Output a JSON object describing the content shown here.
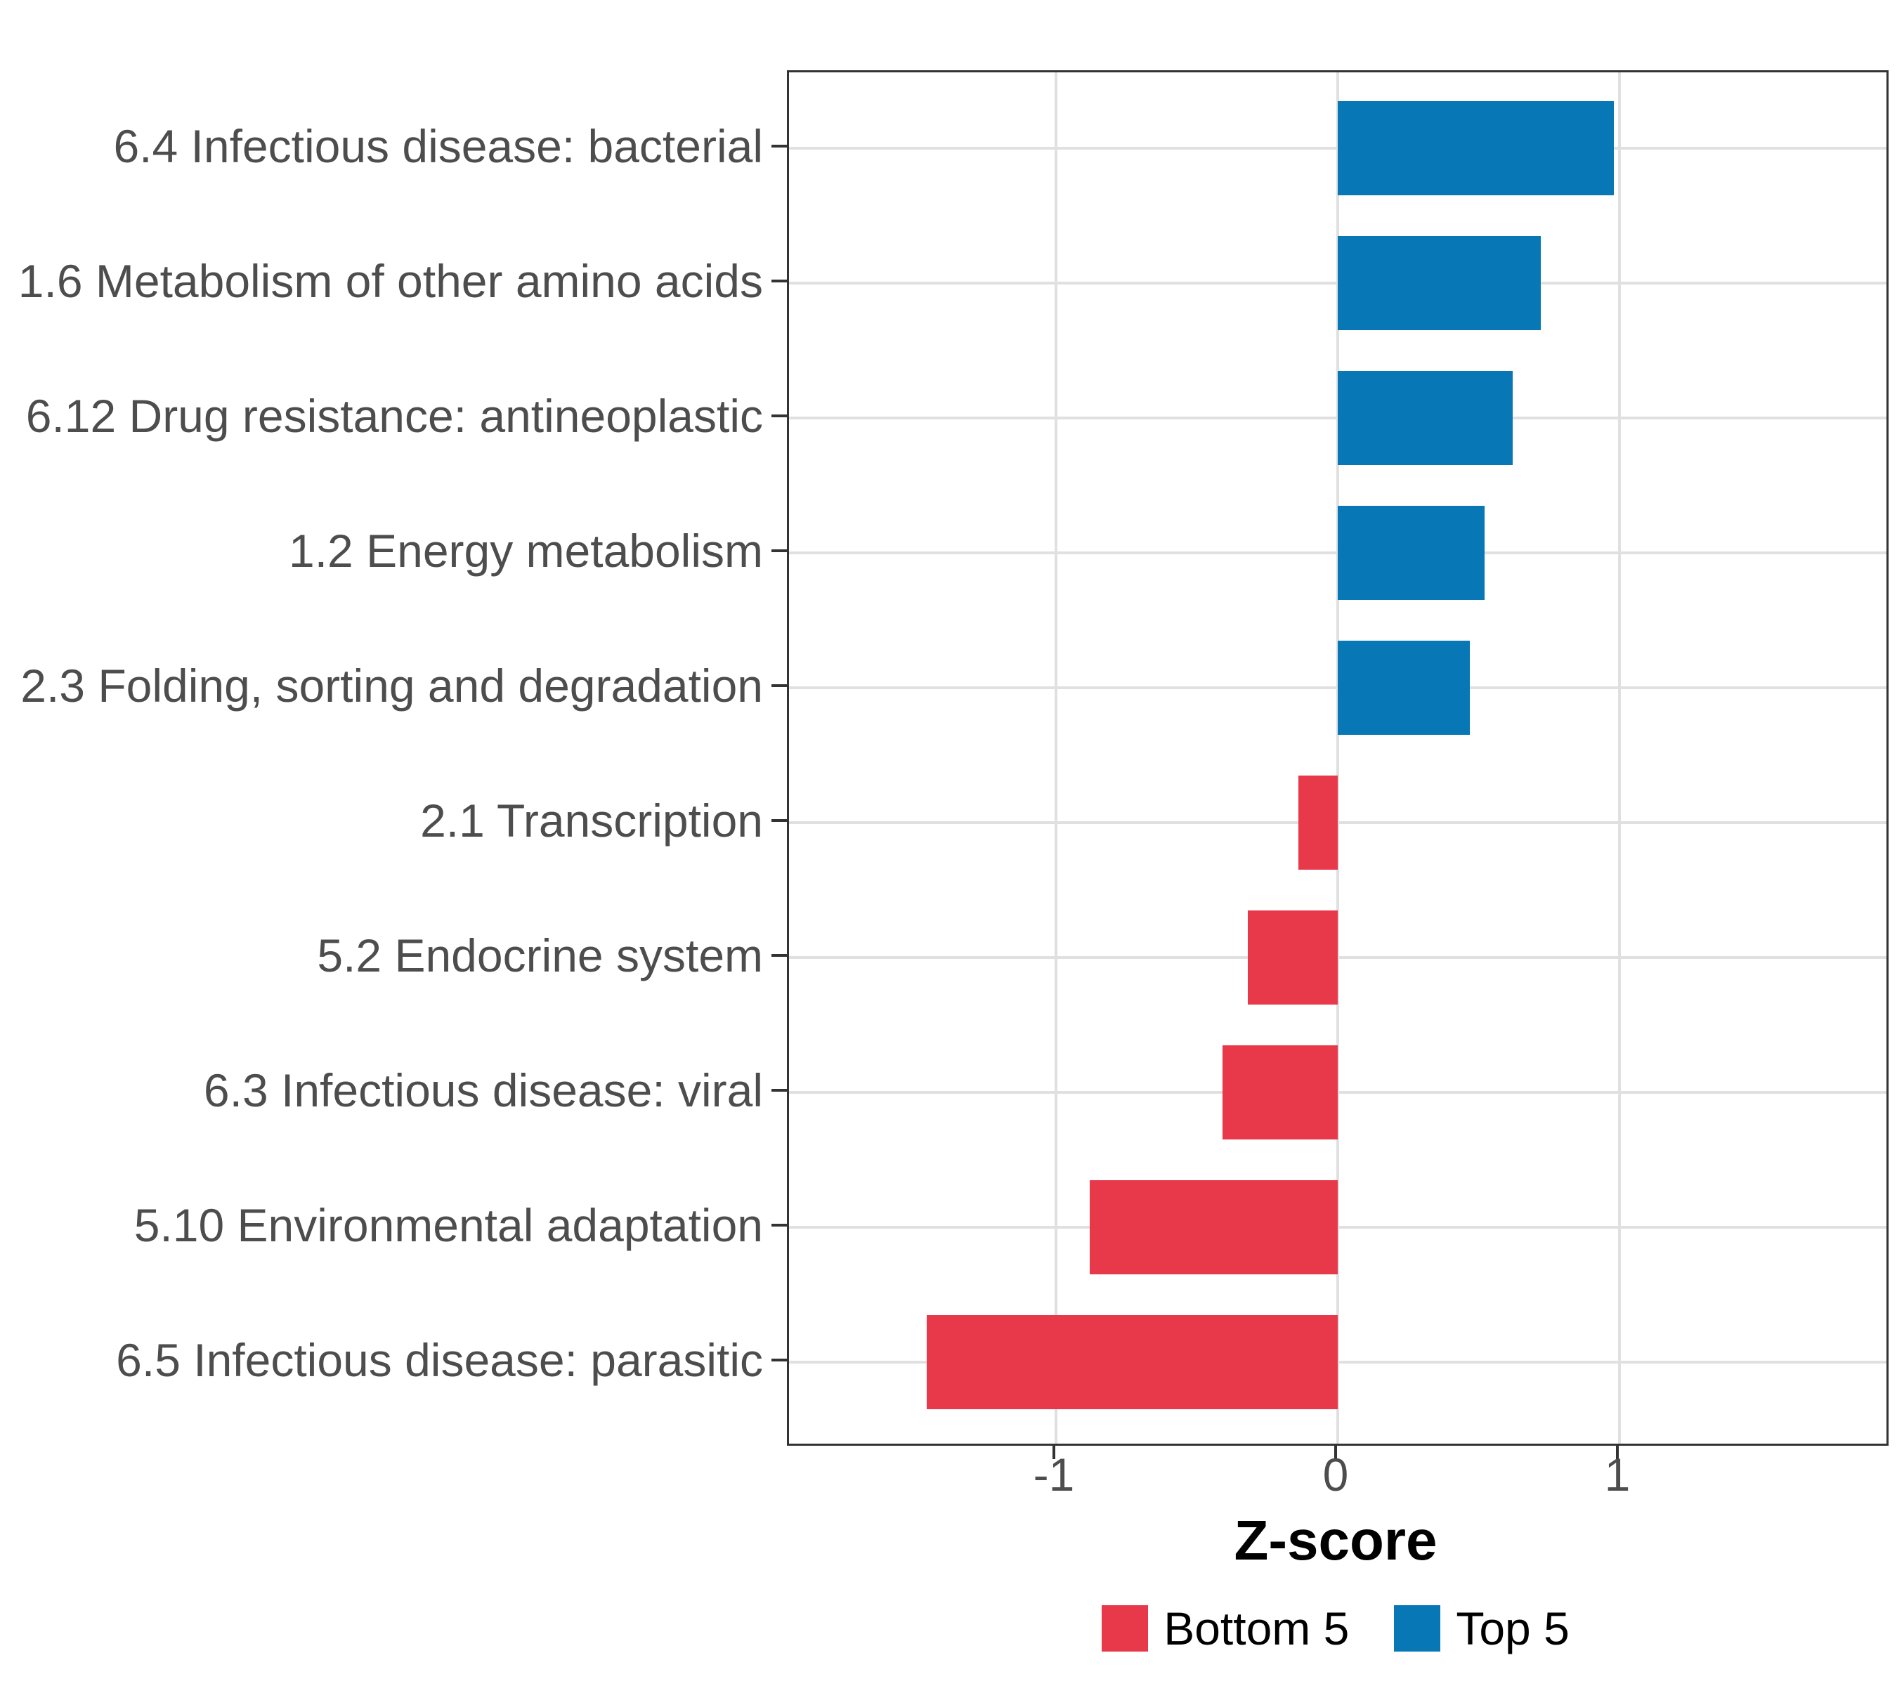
{
  "chart_data": {
    "type": "bar",
    "orientation": "horizontal",
    "title": "",
    "xlabel": "Z-score",
    "ylabel": "",
    "categories": [
      "6.4 Infectious disease: bacterial",
      "1.6 Metabolism of other amino acids",
      "6.12 Drug resistance: antineoplastic",
      "1.2 Energy metabolism",
      "2.3 Folding, sorting and degradation",
      "2.1 Transcription",
      "5.2 Endocrine system",
      "6.3 Infectious disease: viral",
      "5.10 Environmental adaptation",
      "6.5 Infectious disease: parasitic"
    ],
    "values": [
      0.98,
      0.72,
      0.62,
      0.52,
      0.47,
      -0.14,
      -0.32,
      -0.41,
      -0.88,
      -1.46
    ],
    "groups": [
      "Top 5",
      "Top 5",
      "Top 5",
      "Top 5",
      "Top 5",
      "Bottom 5",
      "Bottom 5",
      "Bottom 5",
      "Bottom 5",
      "Bottom 5"
    ],
    "series": [
      {
        "name": "Bottom 5",
        "color": "#E8394A"
      },
      {
        "name": "Top 5",
        "color": "#0777B5"
      }
    ],
    "xlim": [
      -1.95,
      1.95
    ],
    "x_ticks": [
      -1,
      0,
      1
    ],
    "x_tick_labels": [
      "-1",
      "0",
      "1"
    ],
    "grid": "major",
    "legend_position": "bottom",
    "bar_width_fraction": 0.7
  },
  "legend": {
    "items": [
      {
        "label": "Bottom 5",
        "color": "#E8394A"
      },
      {
        "label": "Top 5",
        "color": "#0777B5"
      }
    ]
  },
  "colors": {
    "bottom5": "#E8394A",
    "top5": "#0777B5",
    "axis_text": "#4D4D4D",
    "gridline": "#E0E0E0",
    "panel_border": "#333333"
  }
}
